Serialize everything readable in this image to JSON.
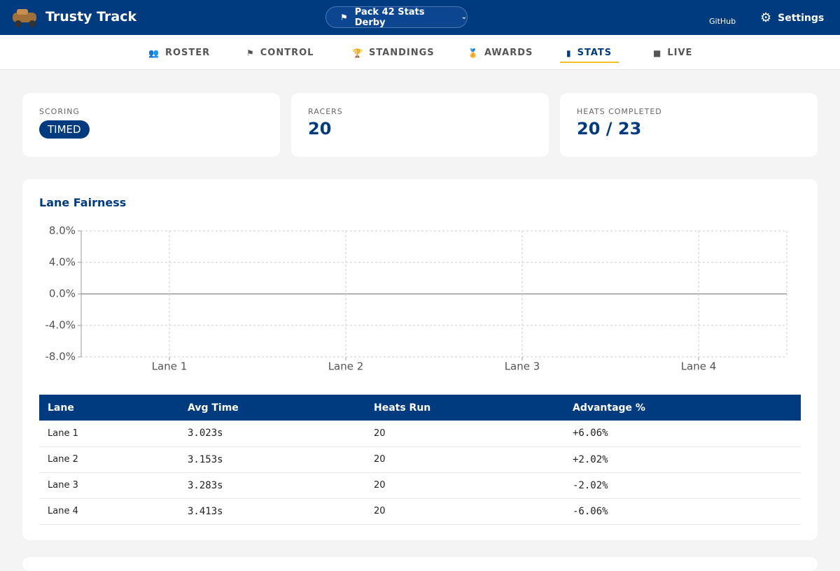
{
  "header": {
    "brand": "Trusty Track",
    "event": "Pack 42 Stats Derby",
    "github": "GitHub",
    "settings": "Settings"
  },
  "nav": {
    "items": [
      "ROSTER",
      "CONTROL",
      "STANDINGS",
      "AWARDS",
      "STATS",
      "LIVE"
    ],
    "active": 4
  },
  "stats": [
    {
      "label": "SCORING",
      "value": "TIMED"
    },
    {
      "label": "RACERS",
      "value": 20
    },
    {
      "label": "HEATS COMPLETED",
      "value": "20 / 23"
    }
  ],
  "chart_data": {
    "type": "bar",
    "title": "Lane Fairness",
    "categories": [
      "Lane 1",
      "Lane 2",
      "Lane 3",
      "Lane 4"
    ],
    "ylim": [
      -8,
      8
    ],
    "yticks": [
      {
        "value": -8,
        "label": "-8.0%"
      },
      {
        "value": -4,
        "label": "-4.0%"
      },
      {
        "value": 0,
        "label": "0.0%"
      },
      {
        "value": 4,
        "label": "4.0%"
      },
      {
        "value": 8,
        "label": "8.0%"
      }
    ],
    "grid": true
  },
  "table": {
    "headers": [
      "Lane",
      "Avg Time",
      "Heats Run",
      "Advantage %"
    ],
    "rows": [
      [
        "Lane 1",
        "3.023s",
        "20",
        "+6.06%"
      ],
      [
        "Lane 2",
        "3.153s",
        "20",
        "+2.02%"
      ],
      [
        "Lane 3",
        "3.283s",
        "20",
        "-2.02%"
      ],
      [
        "Lane 4",
        "3.413s",
        "20",
        "-6.06%"
      ]
    ]
  }
}
